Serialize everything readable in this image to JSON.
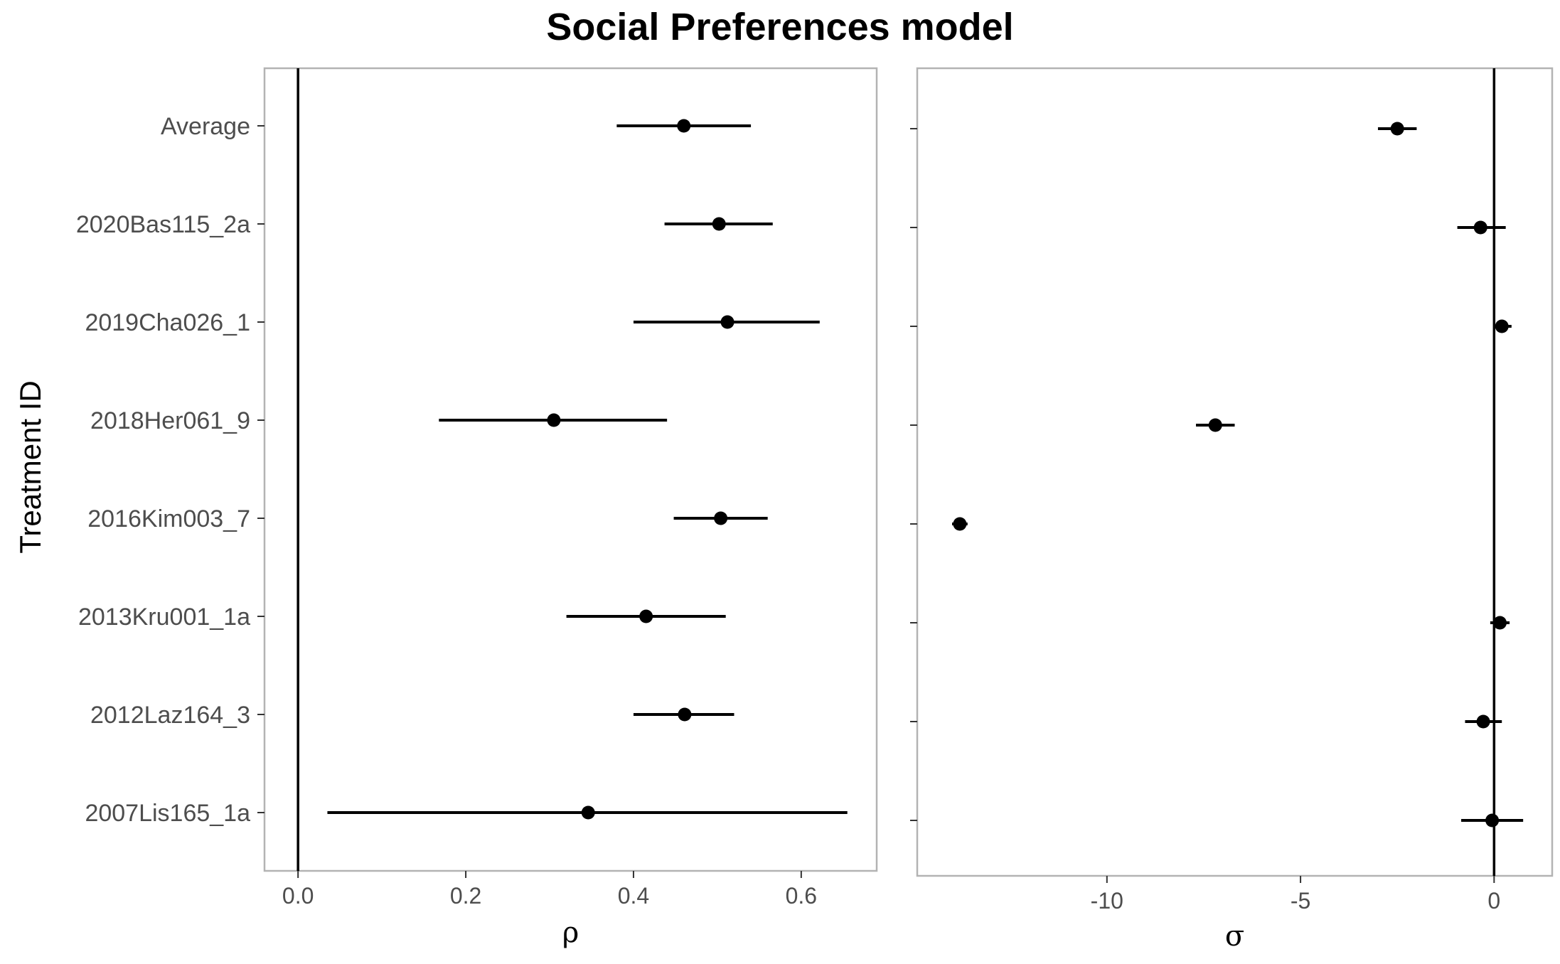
{
  "chart_data": {
    "type": "scatter",
    "title": "Social Preferences model",
    "ylabel": "Treatment ID",
    "categories": [
      "Average",
      "2020Bas115_2a",
      "2019Cha026_1",
      "2018Her061_9",
      "2016Kim003_7",
      "2013Kru001_1a",
      "2012Laz164_3",
      "2007Lis165_1a"
    ],
    "panels": [
      {
        "xlabel": "ρ",
        "xlim": [
          -0.04,
          0.69
        ],
        "xticks": [
          0.0,
          0.2,
          0.4,
          0.6
        ],
        "xtick_labels": [
          "0.0",
          "0.2",
          "0.4",
          "0.6"
        ],
        "ref_line": 0,
        "series": [
          {
            "estimate": [
              0.46,
              0.502,
              0.512,
              0.305,
              0.504,
              0.415,
              0.461,
              0.346
            ],
            "lower": [
              0.38,
              0.437,
              0.4,
              0.168,
              0.448,
              0.32,
              0.4,
              0.035
            ],
            "upper": [
              0.54,
              0.566,
              0.622,
              0.44,
              0.56,
              0.51,
              0.52,
              0.655
            ]
          }
        ]
      },
      {
        "xlabel": "σ",
        "xlim": [
          -14.9,
          1.5
        ],
        "xticks": [
          -10,
          -5,
          0
        ],
        "xtick_labels": [
          "-10",
          "-5",
          "0"
        ],
        "ref_line": 0,
        "series": [
          {
            "estimate": [
              -2.5,
              -0.35,
              0.2,
              -7.2,
              -13.8,
              0.15,
              -0.28,
              -0.05
            ],
            "lower": [
              -3.0,
              -0.95,
              0.0,
              -7.7,
              -14.0,
              -0.1,
              -0.75,
              -0.85
            ],
            "upper": [
              -2.0,
              0.3,
              0.45,
              -6.7,
              -13.6,
              0.4,
              0.2,
              0.75
            ]
          }
        ]
      }
    ]
  }
}
